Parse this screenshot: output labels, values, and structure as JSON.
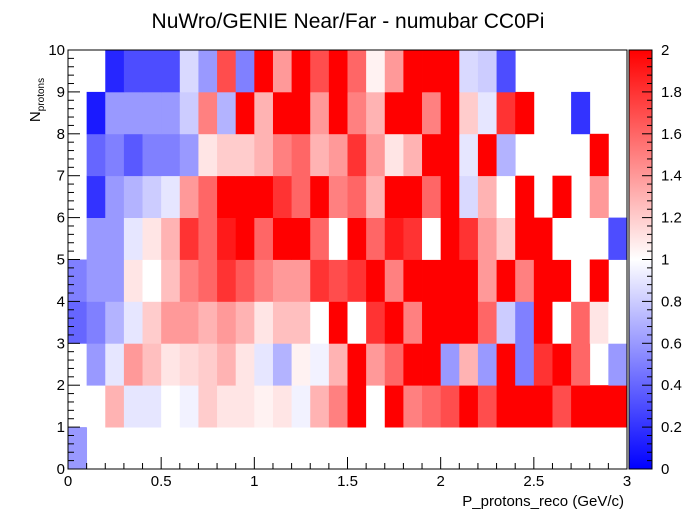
{
  "chart_data": {
    "type": "heatmap",
    "title": "NuWro/GENIE Near/Far - numubar CC0Pi",
    "xlabel": "P_protons_reco (GeV/c)",
    "ylabel_main": "N",
    "ylabel_sub": "protons",
    "xlim": [
      0,
      3
    ],
    "ylim": [
      0,
      10
    ],
    "zlim": [
      0,
      2
    ],
    "x_ticks": [
      "0",
      "0.5",
      "1",
      "1.5",
      "2",
      "2.5",
      "3"
    ],
    "y_ticks": [
      "0",
      "1",
      "2",
      "3",
      "4",
      "5",
      "6",
      "7",
      "8",
      "9",
      "10"
    ],
    "z_ticks": [
      "0",
      "0.2",
      "0.4",
      "0.6",
      "0.8",
      "1",
      "1.2",
      "1.4",
      "1.6",
      "1.8",
      "2"
    ],
    "colorscale": [
      "#0000ff",
      "#ffffff",
      "#ff0000"
    ],
    "x_bins": 30,
    "y_bins": 10,
    "bin_width_x": 0.1,
    "bin_width_y": 1,
    "values": [
      [
        0.6,
        null,
        null,
        null,
        null,
        null,
        null,
        null,
        null,
        null,
        null,
        null,
        null,
        null,
        null,
        null,
        null,
        null,
        null,
        null,
        null,
        null,
        null,
        null,
        null,
        null,
        null,
        null,
        null,
        null
      ],
      [
        null,
        1.0,
        1.3,
        0.9,
        0.9,
        1.0,
        0.95,
        1.2,
        1.1,
        1.1,
        1.05,
        1.1,
        0.95,
        1.3,
        1.5,
        2.0,
        1.0,
        2.0,
        1.5,
        1.6,
        1.7,
        2.0,
        1.7,
        2.0,
        2.0,
        2.0,
        1.7,
        2.0,
        2.0,
        2.0
      ],
      [
        null,
        0.6,
        0.9,
        1.4,
        1.25,
        1.1,
        1.15,
        1.2,
        1.3,
        1.1,
        0.9,
        0.7,
        1.05,
        0.95,
        1.3,
        2.0,
        1.4,
        1.6,
        2.0,
        2.0,
        0.6,
        1.3,
        0.6,
        2.0,
        0.5,
        1.8,
        2.0,
        1.6,
        null,
        0.6
      ],
      [
        0.4,
        0.5,
        0.7,
        0.9,
        1.2,
        1.4,
        1.4,
        1.3,
        1.4,
        1.3,
        1.1,
        1.25,
        1.25,
        1.0,
        2.0,
        1.0,
        1.8,
        2.0,
        1.5,
        2.0,
        2.0,
        2.0,
        1.6,
        0.8,
        0.5,
        2.0,
        1.0,
        1.6,
        1.1,
        1.0
      ],
      [
        0.5,
        0.6,
        0.6,
        1.1,
        1.0,
        1.25,
        1.5,
        1.6,
        1.8,
        1.65,
        1.5,
        1.4,
        1.4,
        1.8,
        1.7,
        1.8,
        2.0,
        1.5,
        2.0,
        2.0,
        2.0,
        2.0,
        1.4,
        2.0,
        1.5,
        2.0,
        2.0,
        1.0,
        2.0,
        null
      ],
      [
        null,
        0.6,
        0.6,
        0.9,
        1.1,
        1.3,
        1.8,
        1.6,
        1.9,
        2.0,
        1.6,
        2.0,
        2.0,
        1.6,
        1.0,
        2.0,
        1.6,
        1.9,
        1.8,
        1.0,
        2.0,
        1.8,
        1.4,
        1.2,
        2.0,
        2.0,
        1.0,
        null,
        null,
        0.3
      ],
      [
        null,
        0.2,
        0.6,
        0.7,
        0.8,
        0.9,
        1.4,
        1.6,
        2.0,
        2.0,
        2.0,
        1.8,
        1.6,
        2.0,
        1.5,
        1.6,
        1.3,
        2.0,
        2.0,
        1.6,
        2.0,
        0.85,
        1.3,
        1.0,
        2.0,
        null,
        2.0,
        null,
        1.4,
        null
      ],
      [
        null,
        0.4,
        0.5,
        0.35,
        0.5,
        0.5,
        0.6,
        1.1,
        1.2,
        1.2,
        1.3,
        1.5,
        1.6,
        1.3,
        1.4,
        1.8,
        1.4,
        1.1,
        1.3,
        2.0,
        2.0,
        0.9,
        2.0,
        0.7,
        null,
        null,
        null,
        null,
        2.0,
        null
      ],
      [
        null,
        0.1,
        0.6,
        0.6,
        0.6,
        0.6,
        0.8,
        1.5,
        0.7,
        2.0,
        1.3,
        2.0,
        2.0,
        1.4,
        2.0,
        1.5,
        1.3,
        2.0,
        2.0,
        1.5,
        2.0,
        1.2,
        0.9,
        1.8,
        2.0,
        null,
        null,
        0.2,
        null,
        null
      ],
      [
        null,
        null,
        0.15,
        0.3,
        0.3,
        0.3,
        0.85,
        0.6,
        1.7,
        0.5,
        2.0,
        1.4,
        2.0,
        1.7,
        2.0,
        1.6,
        1.05,
        1.4,
        2.0,
        2.0,
        2.0,
        0.85,
        0.8,
        0.3,
        null,
        null,
        null,
        null,
        null,
        null
      ]
    ]
  }
}
